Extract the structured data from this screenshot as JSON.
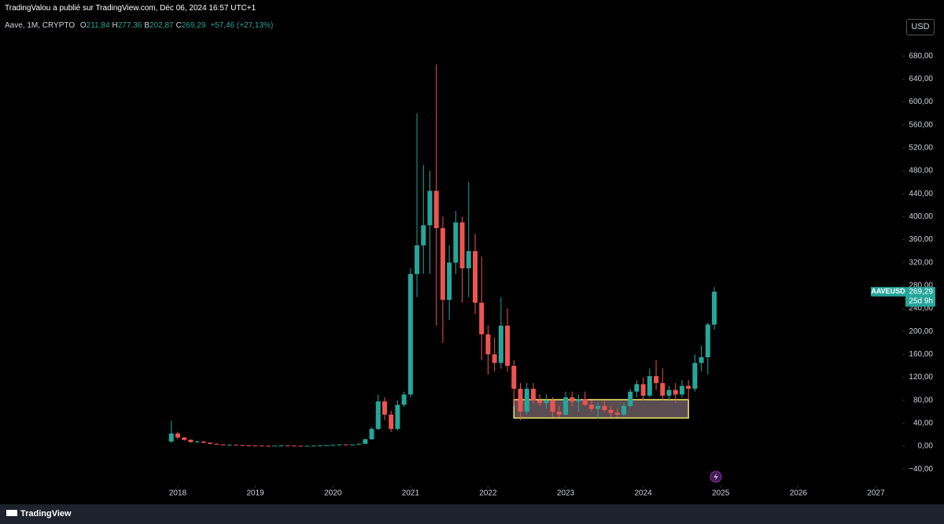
{
  "header": {
    "published": "TradingValou a publié sur TradingView.com, Déc 06, 2024 16:57 UTC+1",
    "symbol": "Aave, 1M, CRYPTO",
    "ohlc": [
      {
        "label": "O",
        "value": "211,84"
      },
      {
        "label": "H",
        "value": "277,36"
      },
      {
        "label": "B",
        "value": "202,87"
      },
      {
        "label": "C",
        "value": "269,29"
      }
    ],
    "change": "+57,46 (+27,13%)",
    "currency": "USD",
    "brand": "TradingView"
  },
  "chart_data": {
    "type": "candlestick",
    "x": [
      "2017-12",
      "2018-01",
      "2018-02",
      "2018-03",
      "2018-04",
      "2018-05",
      "2018-06",
      "2018-07",
      "2018-08",
      "2018-09",
      "2018-10",
      "2018-11",
      "2018-12",
      "2019-01",
      "2019-02",
      "2019-03",
      "2019-04",
      "2019-05",
      "2019-06",
      "2019-07",
      "2019-08",
      "2019-09",
      "2019-10",
      "2019-11",
      "2019-12",
      "2020-01",
      "2020-02",
      "2020-03",
      "2020-04",
      "2020-05",
      "2020-06",
      "2020-07",
      "2020-08",
      "2020-09",
      "2020-10",
      "2020-11",
      "2020-12",
      "2021-01",
      "2021-02",
      "2021-03",
      "2021-04",
      "2021-05",
      "2021-06",
      "2021-07",
      "2021-08",
      "2021-09",
      "2021-10",
      "2021-11",
      "2021-12",
      "2022-01",
      "2022-02",
      "2022-03",
      "2022-04",
      "2022-05",
      "2022-06",
      "2022-07",
      "2022-08",
      "2022-09",
      "2022-10",
      "2022-11",
      "2022-12",
      "2023-01",
      "2023-02",
      "2023-03",
      "2023-04",
      "2023-05",
      "2023-06",
      "2023-07",
      "2023-08",
      "2023-09",
      "2023-10",
      "2023-11",
      "2023-12",
      "2024-01",
      "2024-02",
      "2024-03",
      "2024-04",
      "2024-05",
      "2024-06",
      "2024-07",
      "2024-08",
      "2024-09",
      "2024-10",
      "2024-11",
      "2024-12"
    ],
    "open": [
      8,
      22,
      15,
      11,
      7,
      8,
      6,
      4,
      3,
      2,
      2.2,
      1.8,
      1.2,
      1,
      0.9,
      0.8,
      0.7,
      0.8,
      1.1,
      0.9,
      0.7,
      0.6,
      0.7,
      0.9,
      1.3,
      1.6,
      2.2,
      2.8,
      1.9,
      2.6,
      4,
      12,
      30,
      78,
      55,
      30,
      72,
      90,
      300,
      350,
      385,
      445,
      380,
      255,
      320,
      390,
      310,
      340,
      250,
      195,
      160,
      145,
      210,
      140,
      100,
      60,
      100,
      80,
      75,
      80,
      60,
      55,
      85,
      78,
      82,
      72,
      65,
      70,
      63,
      58,
      55,
      70,
      95,
      108,
      88,
      122,
      110,
      88,
      98,
      90,
      105,
      100,
      145,
      155,
      211.84
    ],
    "high": [
      44,
      25,
      16,
      12,
      10,
      9,
      6.5,
      5,
      3.2,
      3,
      2.5,
      2,
      1.5,
      1.2,
      1.1,
      1,
      1,
      1.3,
      1.4,
      1,
      0.8,
      0.8,
      1,
      1.5,
      1.8,
      2.5,
      3.5,
      3,
      2.8,
      4.5,
      13,
      33,
      90,
      85,
      62,
      80,
      95,
      310,
      580,
      490,
      480,
      665,
      400,
      350,
      410,
      400,
      460,
      370,
      330,
      210,
      190,
      260,
      240,
      150,
      110,
      110,
      110,
      90,
      90,
      85,
      70,
      95,
      95,
      90,
      95,
      80,
      75,
      80,
      70,
      65,
      75,
      100,
      115,
      120,
      135,
      150,
      135,
      105,
      110,
      115,
      115,
      160,
      175,
      215,
      277.36
    ],
    "low": [
      6,
      12,
      9,
      6,
      6,
      5,
      3,
      3,
      2,
      1.5,
      1.5,
      1,
      0.8,
      0.8,
      0.7,
      0.6,
      0.6,
      0.7,
      0.8,
      0.6,
      0.5,
      0.5,
      0.6,
      0.8,
      1.2,
      1.5,
      2,
      1.2,
      1.7,
      2.5,
      3.8,
      11,
      28,
      45,
      25,
      27,
      68,
      85,
      260,
      300,
      300,
      210,
      180,
      220,
      300,
      250,
      260,
      230,
      150,
      125,
      130,
      135,
      130,
      70,
      45,
      55,
      75,
      70,
      65,
      50,
      50,
      53,
      70,
      60,
      70,
      60,
      48,
      60,
      50,
      50,
      53,
      68,
      85,
      80,
      85,
      98,
      80,
      78,
      75,
      85,
      80,
      95,
      130,
      125,
      202.87
    ],
    "close": [
      22,
      15,
      11,
      7,
      8,
      6,
      4,
      3,
      2,
      2.2,
      1.8,
      1.2,
      1,
      0.9,
      0.8,
      0.7,
      0.8,
      1.1,
      0.9,
      0.7,
      0.6,
      0.7,
      0.9,
      1.3,
      1.6,
      2.2,
      2.8,
      1.9,
      2.6,
      4,
      12,
      30,
      78,
      55,
      30,
      72,
      90,
      300,
      350,
      385,
      445,
      380,
      255,
      320,
      390,
      310,
      340,
      250,
      195,
      160,
      145,
      210,
      140,
      100,
      60,
      100,
      80,
      75,
      80,
      60,
      55,
      85,
      78,
      82,
      72,
      65,
      70,
      63,
      58,
      55,
      70,
      95,
      108,
      88,
      122,
      110,
      88,
      98,
      90,
      105,
      100,
      145,
      155,
      212,
      269.29
    ],
    "up_color": "#26a69a",
    "down_color": "#ef5350",
    "xlim": [
      2015.708,
      2027.32
    ],
    "xticks": [
      2018,
      2019,
      2020,
      2021,
      2022,
      2023,
      2024,
      2025,
      2026,
      2027
    ],
    "ylim": [
      -65.8,
      716
    ],
    "yticks": [
      {
        "value": -40,
        "label": "−40,00"
      },
      {
        "value": 0,
        "label": "0,00"
      },
      {
        "value": 40,
        "label": "40,00"
      },
      {
        "value": 80,
        "label": "80,00"
      },
      {
        "value": 120,
        "label": "120,00"
      },
      {
        "value": 160,
        "label": "160,00"
      },
      {
        "value": 200,
        "label": "200,00"
      },
      {
        "value": 240,
        "label": "240,00"
      },
      {
        "value": 280,
        "label": "280,00"
      },
      {
        "value": 320,
        "label": "320,00"
      },
      {
        "value": 360,
        "label": "360,00"
      },
      {
        "value": 400,
        "label": "400,00"
      },
      {
        "value": 440,
        "label": "440,00"
      },
      {
        "value": 480,
        "label": "480,00"
      },
      {
        "value": 520,
        "label": "520,00"
      },
      {
        "value": 560,
        "label": "560,00"
      },
      {
        "value": 600,
        "label": "600,00"
      },
      {
        "value": 640,
        "label": "640,00"
      },
      {
        "value": 680,
        "label": "680,00"
      }
    ],
    "grid": false,
    "annotation_box": {
      "x": [
        "2022-05",
        "2024-08"
      ],
      "y": [
        49,
        81
      ],
      "color": "#f5e663"
    },
    "last_price_label": {
      "symbol": "AAVEUSD",
      "price": "269,29",
      "countdown": "25d 9h",
      "color": "#26a69a"
    }
  }
}
